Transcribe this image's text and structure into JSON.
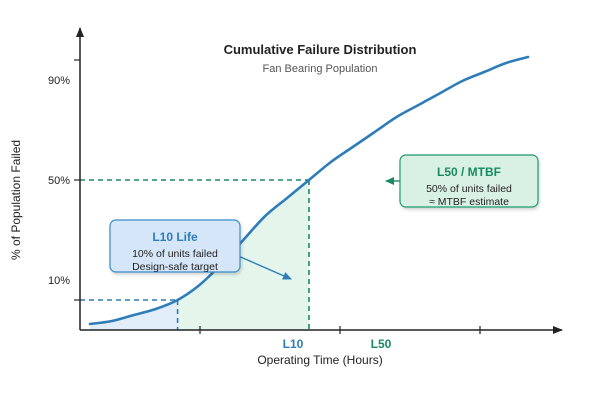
{
  "chart_data": {
    "type": "line",
    "title": "Cumulative Failure Distribution",
    "subtitle": "Fan Bearing Population",
    "xlabel": "Operating Time (Hours)",
    "ylabel": "% of Population Failed",
    "ytick_labels": [
      "10%",
      "50%",
      "90%"
    ],
    "xtick_labels": [
      "L10",
      "L50"
    ],
    "legend": "none",
    "grid": false,
    "series": [
      {
        "values": [
          {
            "x": 0.0,
            "y": 2
          },
          {
            "x": 0.05,
            "y": 3
          },
          {
            "x": 0.1,
            "y": 5
          },
          {
            "x": 0.15,
            "y": 7
          },
          {
            "x": 0.2,
            "y": 10
          },
          {
            "x": 0.25,
            "y": 15
          },
          {
            "x": 0.3,
            "y": 22
          },
          {
            "x": 0.35,
            "y": 30
          },
          {
            "x": 0.4,
            "y": 38
          },
          {
            "x": 0.45,
            "y": 44
          },
          {
            "x": 0.5,
            "y": 50
          },
          {
            "x": 0.55,
            "y": 56
          },
          {
            "x": 0.6,
            "y": 61
          },
          {
            "x": 0.65,
            "y": 66
          },
          {
            "x": 0.7,
            "y": 71
          },
          {
            "x": 0.75,
            "y": 75
          },
          {
            "x": 0.8,
            "y": 79
          },
          {
            "x": 0.85,
            "y": 83
          },
          {
            "x": 0.9,
            "y": 86
          },
          {
            "x": 0.95,
            "y": 89
          },
          {
            "x": 1.0,
            "y": 91
          }
        ]
      }
    ],
    "markers": [
      {
        "label": "L10",
        "y": 10
      },
      {
        "label": "L50",
        "y": 50
      }
    ],
    "annotations": [
      {
        "title": "L10 Life",
        "lines": [
          "10% of units failed",
          "Design-safe target"
        ]
      },
      {
        "title": "L50 / MTBF",
        "lines": [
          "50% of units failed",
          "≈ MTBF estimate"
        ]
      }
    ],
    "colors": {
      "curve": "#2e7db8",
      "l10": "#2e7db8",
      "l50": "#1a8a63",
      "l10_fill": "#dcebf8",
      "l50_fill": "#dff3e8",
      "axis": "#222222"
    }
  }
}
